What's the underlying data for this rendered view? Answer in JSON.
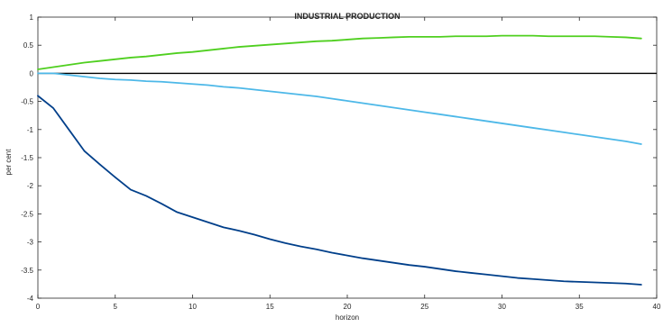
{
  "colors": {
    "background": "#ffffff",
    "axes": "#262626",
    "zero_line": "#000000",
    "series_green": "#4fcf1f",
    "series_light_blue": "#4db8e8",
    "series_dark_blue": "#003f8a"
  },
  "chart_data": {
    "type": "line",
    "title": "INDUSTRIAL PRODUCTION",
    "xlabel": "horizon",
    "ylabel": "per cent",
    "xlim": [
      0,
      40
    ],
    "ylim": [
      -4,
      1
    ],
    "grid": false,
    "xticks": [
      0,
      5,
      10,
      15,
      20,
      25,
      30,
      35,
      40
    ],
    "yticks": [
      1,
      0.5,
      0,
      -0.5,
      -1,
      -1.5,
      -2,
      -2.5,
      -3,
      -3.5,
      -4
    ],
    "xtick_labels": [
      "0",
      "5",
      "10",
      "15",
      "20",
      "25",
      "30",
      "35",
      "40"
    ],
    "ytick_labels": [
      "1",
      "0.5",
      "0",
      "-0.5",
      "-1",
      "-1.5",
      "-2",
      "-2.5",
      "-3",
      "-3.5",
      "-4"
    ],
    "reference_line": {
      "y": 0,
      "color": "#000000"
    },
    "series": [
      {
        "color": "#4fcf1f",
        "x": [
          0,
          1,
          2,
          3,
          4,
          5,
          6,
          7,
          8,
          9,
          10,
          11,
          12,
          13,
          14,
          15,
          16,
          17,
          18,
          19,
          20,
          21,
          22,
          23,
          24,
          25,
          26,
          27,
          28,
          29,
          30,
          31,
          32,
          33,
          34,
          35,
          36,
          37,
          38,
          39
        ],
        "y": [
          0.07,
          0.11,
          0.15,
          0.19,
          0.22,
          0.25,
          0.28,
          0.3,
          0.33,
          0.36,
          0.38,
          0.41,
          0.44,
          0.47,
          0.49,
          0.51,
          0.53,
          0.55,
          0.57,
          0.58,
          0.6,
          0.62,
          0.63,
          0.64,
          0.65,
          0.65,
          0.65,
          0.66,
          0.66,
          0.66,
          0.67,
          0.67,
          0.67,
          0.66,
          0.66,
          0.66,
          0.66,
          0.65,
          0.64,
          0.62
        ]
      },
      {
        "color": "#4db8e8",
        "x": [
          0,
          1,
          2,
          3,
          4,
          5,
          6,
          7,
          8,
          9,
          10,
          11,
          12,
          13,
          14,
          15,
          16,
          17,
          18,
          19,
          20,
          21,
          22,
          23,
          24,
          25,
          26,
          27,
          28,
          29,
          30,
          31,
          32,
          33,
          34,
          35,
          36,
          37,
          38,
          39
        ],
        "y": [
          0.0,
          0.0,
          -0.03,
          -0.06,
          -0.09,
          -0.11,
          -0.12,
          -0.14,
          -0.15,
          -0.17,
          -0.19,
          -0.21,
          -0.24,
          -0.26,
          -0.29,
          -0.32,
          -0.35,
          -0.38,
          -0.41,
          -0.45,
          -0.49,
          -0.53,
          -0.57,
          -0.61,
          -0.65,
          -0.69,
          -0.73,
          -0.77,
          -0.81,
          -0.85,
          -0.89,
          -0.93,
          -0.97,
          -1.01,
          -1.05,
          -1.09,
          -1.13,
          -1.17,
          -1.21,
          -1.26
        ]
      },
      {
        "color": "#003f8a",
        "x": [
          0,
          1,
          2,
          3,
          4,
          5,
          6,
          7,
          8,
          9,
          10,
          11,
          12,
          13,
          14,
          15,
          16,
          17,
          18,
          19,
          20,
          21,
          22,
          23,
          24,
          25,
          26,
          27,
          28,
          29,
          30,
          31,
          32,
          33,
          34,
          35,
          36,
          37,
          38,
          39
        ],
        "y": [
          -0.4,
          -0.62,
          -1.0,
          -1.38,
          -1.62,
          -1.85,
          -2.07,
          -2.18,
          -2.32,
          -2.47,
          -2.56,
          -2.65,
          -2.74,
          -2.8,
          -2.87,
          -2.95,
          -3.02,
          -3.08,
          -3.13,
          -3.19,
          -3.24,
          -3.29,
          -3.33,
          -3.37,
          -3.41,
          -3.44,
          -3.48,
          -3.52,
          -3.55,
          -3.58,
          -3.61,
          -3.64,
          -3.66,
          -3.68,
          -3.7,
          -3.71,
          -3.72,
          -3.73,
          -3.74,
          -3.76
        ]
      }
    ]
  }
}
